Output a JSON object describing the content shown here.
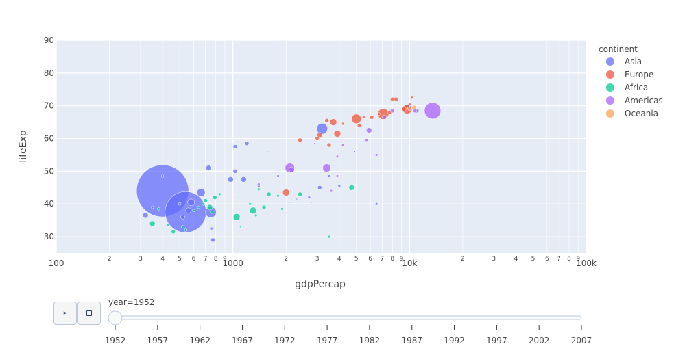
{
  "chart_data": {
    "type": "scatter",
    "title": "",
    "xlabel": "gdpPercap",
    "ylabel": "lifeExp",
    "x_scale": "log",
    "xlim": [
      100,
      100000
    ],
    "ylim": [
      25,
      90
    ],
    "x_ticks_major": [
      {
        "value": 100,
        "label": "100"
      },
      {
        "value": 1000,
        "label": "1000"
      },
      {
        "value": 10000,
        "label": "10k"
      },
      {
        "value": 100000,
        "label": "100k"
      }
    ],
    "x_minor_digits": [
      "2",
      "3",
      "4",
      "5",
      "6",
      "7",
      "8",
      "9"
    ],
    "y_ticks": [
      {
        "value": 30,
        "label": "30"
      },
      {
        "value": 40,
        "label": "40"
      },
      {
        "value": 50,
        "label": "50"
      },
      {
        "value": 60,
        "label": "60"
      },
      {
        "value": 70,
        "label": "70"
      },
      {
        "value": 80,
        "label": "80"
      },
      {
        "value": 90,
        "label": "90"
      }
    ],
    "grid": true,
    "legend_title": "continent",
    "legend_position": "right",
    "series": [
      {
        "name": "Asia",
        "color": "#636efa",
        "points": [
          [
            400,
            44,
            38
          ],
          [
            540,
            37.5,
            30
          ],
          [
            750,
            37.5,
            8
          ],
          [
            580,
            40.5,
            5
          ],
          [
            560,
            38,
            4
          ],
          [
            320,
            36.5,
            4
          ],
          [
            350,
            39,
            2
          ],
          [
            400,
            48.5,
            2
          ],
          [
            500,
            40,
            2
          ],
          [
            520,
            36,
            3
          ],
          [
            660,
            43.5,
            6
          ],
          [
            730,
            51,
            4
          ],
          [
            760,
            32.5,
            2
          ],
          [
            770,
            29,
            3
          ],
          [
            970,
            47.5,
            4
          ],
          [
            1030,
            57.5,
            3
          ],
          [
            1200,
            58.5,
            3
          ],
          [
            1150,
            47.5,
            4
          ],
          [
            1030,
            50,
            3
          ],
          [
            1400,
            45.5,
            2
          ],
          [
            1800,
            48.5,
            2
          ],
          [
            3100,
            45,
            3
          ],
          [
            3200,
            63,
            8
          ],
          [
            4000,
            45.5,
            2
          ],
          [
            3500,
            48.5,
            2
          ],
          [
            2700,
            42,
            2
          ],
          [
            2300,
            41.5,
            1
          ],
          [
            2800,
            40.5,
            1
          ],
          [
            6500,
            40,
            2
          ],
          [
            11000,
            68.5,
            3
          ],
          [
            9800,
            70,
            2
          ],
          [
            1600,
            56,
            1
          ],
          [
            2900,
            58.5,
            1
          ],
          [
            4900,
            56,
            1
          ]
        ]
      },
      {
        "name": "Europe",
        "color": "#ef553b",
        "points": [
          [
            2000,
            43.5,
            5
          ],
          [
            2400,
            59.5,
            3
          ],
          [
            3000,
            60,
            3
          ],
          [
            3100,
            61,
            4
          ],
          [
            3400,
            65.5,
            3
          ],
          [
            3500,
            58,
            3
          ],
          [
            3700,
            65,
            5
          ],
          [
            3900,
            61.5,
            5
          ],
          [
            4200,
            64.5,
            2
          ],
          [
            5000,
            66,
            7
          ],
          [
            5200,
            64,
            3
          ],
          [
            5500,
            66.5,
            2
          ],
          [
            6100,
            66.5,
            3
          ],
          [
            6700,
            67.5,
            2
          ],
          [
            7100,
            67.5,
            8
          ],
          [
            7700,
            68,
            3
          ],
          [
            8000,
            72,
            3
          ],
          [
            8400,
            72,
            3
          ],
          [
            9300,
            69,
            3
          ],
          [
            9700,
            69,
            7
          ],
          [
            10000,
            70.5,
            2
          ],
          [
            10300,
            72.5,
            2
          ],
          [
            9500,
            70,
            2
          ]
        ]
      },
      {
        "name": "Africa",
        "color": "#00cc96",
        "points": [
          [
            350,
            34,
            4
          ],
          [
            380,
            38.5,
            2
          ],
          [
            430,
            33.5,
            2
          ],
          [
            460,
            31.5,
            3
          ],
          [
            520,
            33,
            2
          ],
          [
            540,
            32,
            2
          ],
          [
            600,
            38,
            2
          ],
          [
            640,
            39,
            2
          ],
          [
            680,
            40,
            2
          ],
          [
            700,
            41,
            3
          ],
          [
            740,
            39,
            4
          ],
          [
            760,
            37.5,
            2
          ],
          [
            790,
            42,
            3
          ],
          [
            840,
            43,
            2
          ],
          [
            860,
            30.5,
            1
          ],
          [
            1050,
            36,
            5
          ],
          [
            1080,
            42,
            1
          ],
          [
            1100,
            33,
            1
          ],
          [
            1300,
            38,
            5
          ],
          [
            1350,
            36.5,
            2
          ],
          [
            1400,
            44.5,
            2
          ],
          [
            1500,
            39,
            3
          ],
          [
            1600,
            43,
            3
          ],
          [
            1900,
            38.5,
            2
          ],
          [
            2400,
            43,
            3
          ],
          [
            3500,
            30,
            2
          ],
          [
            4700,
            45,
            4
          ],
          [
            1250,
            40,
            2
          ],
          [
            2100,
            40.5,
            1
          ],
          [
            1800,
            42.5,
            2
          ]
        ]
      },
      {
        "name": "Americas",
        "color": "#ab63fa",
        "points": [
          [
            2100,
            51,
            7
          ],
          [
            2150,
            50.5,
            4
          ],
          [
            3400,
            51,
            6
          ],
          [
            3600,
            44,
            2
          ],
          [
            3900,
            54.5,
            2
          ],
          [
            4100,
            56,
            1
          ],
          [
            5700,
            59.5,
            2
          ],
          [
            5900,
            62.5,
            4
          ],
          [
            6500,
            55,
            2
          ],
          [
            8000,
            68.5,
            3
          ],
          [
            10700,
            68.5,
            3
          ],
          [
            13500,
            68.5,
            12
          ],
          [
            3900,
            48.5,
            2
          ],
          [
            2400,
            54.5,
            1
          ],
          [
            1400,
            46,
            2
          ],
          [
            7200,
            66.5,
            3
          ],
          [
            4200,
            58,
            2
          ]
        ]
      },
      {
        "name": "Oceania",
        "color": "#ffa15a",
        "points": [
          [
            10000,
            69.2,
            3
          ],
          [
            10600,
            69.5,
            3
          ]
        ]
      }
    ]
  },
  "slider": {
    "label": "year=1952",
    "current": "1952",
    "steps": [
      "1952",
      "1957",
      "1962",
      "1967",
      "1972",
      "1977",
      "1982",
      "1987",
      "1992",
      "1997",
      "2002",
      "2007"
    ]
  },
  "controls": {
    "play_icon": "play-icon",
    "stop_icon": "stop-icon",
    "play_glyph": "▸"
  }
}
